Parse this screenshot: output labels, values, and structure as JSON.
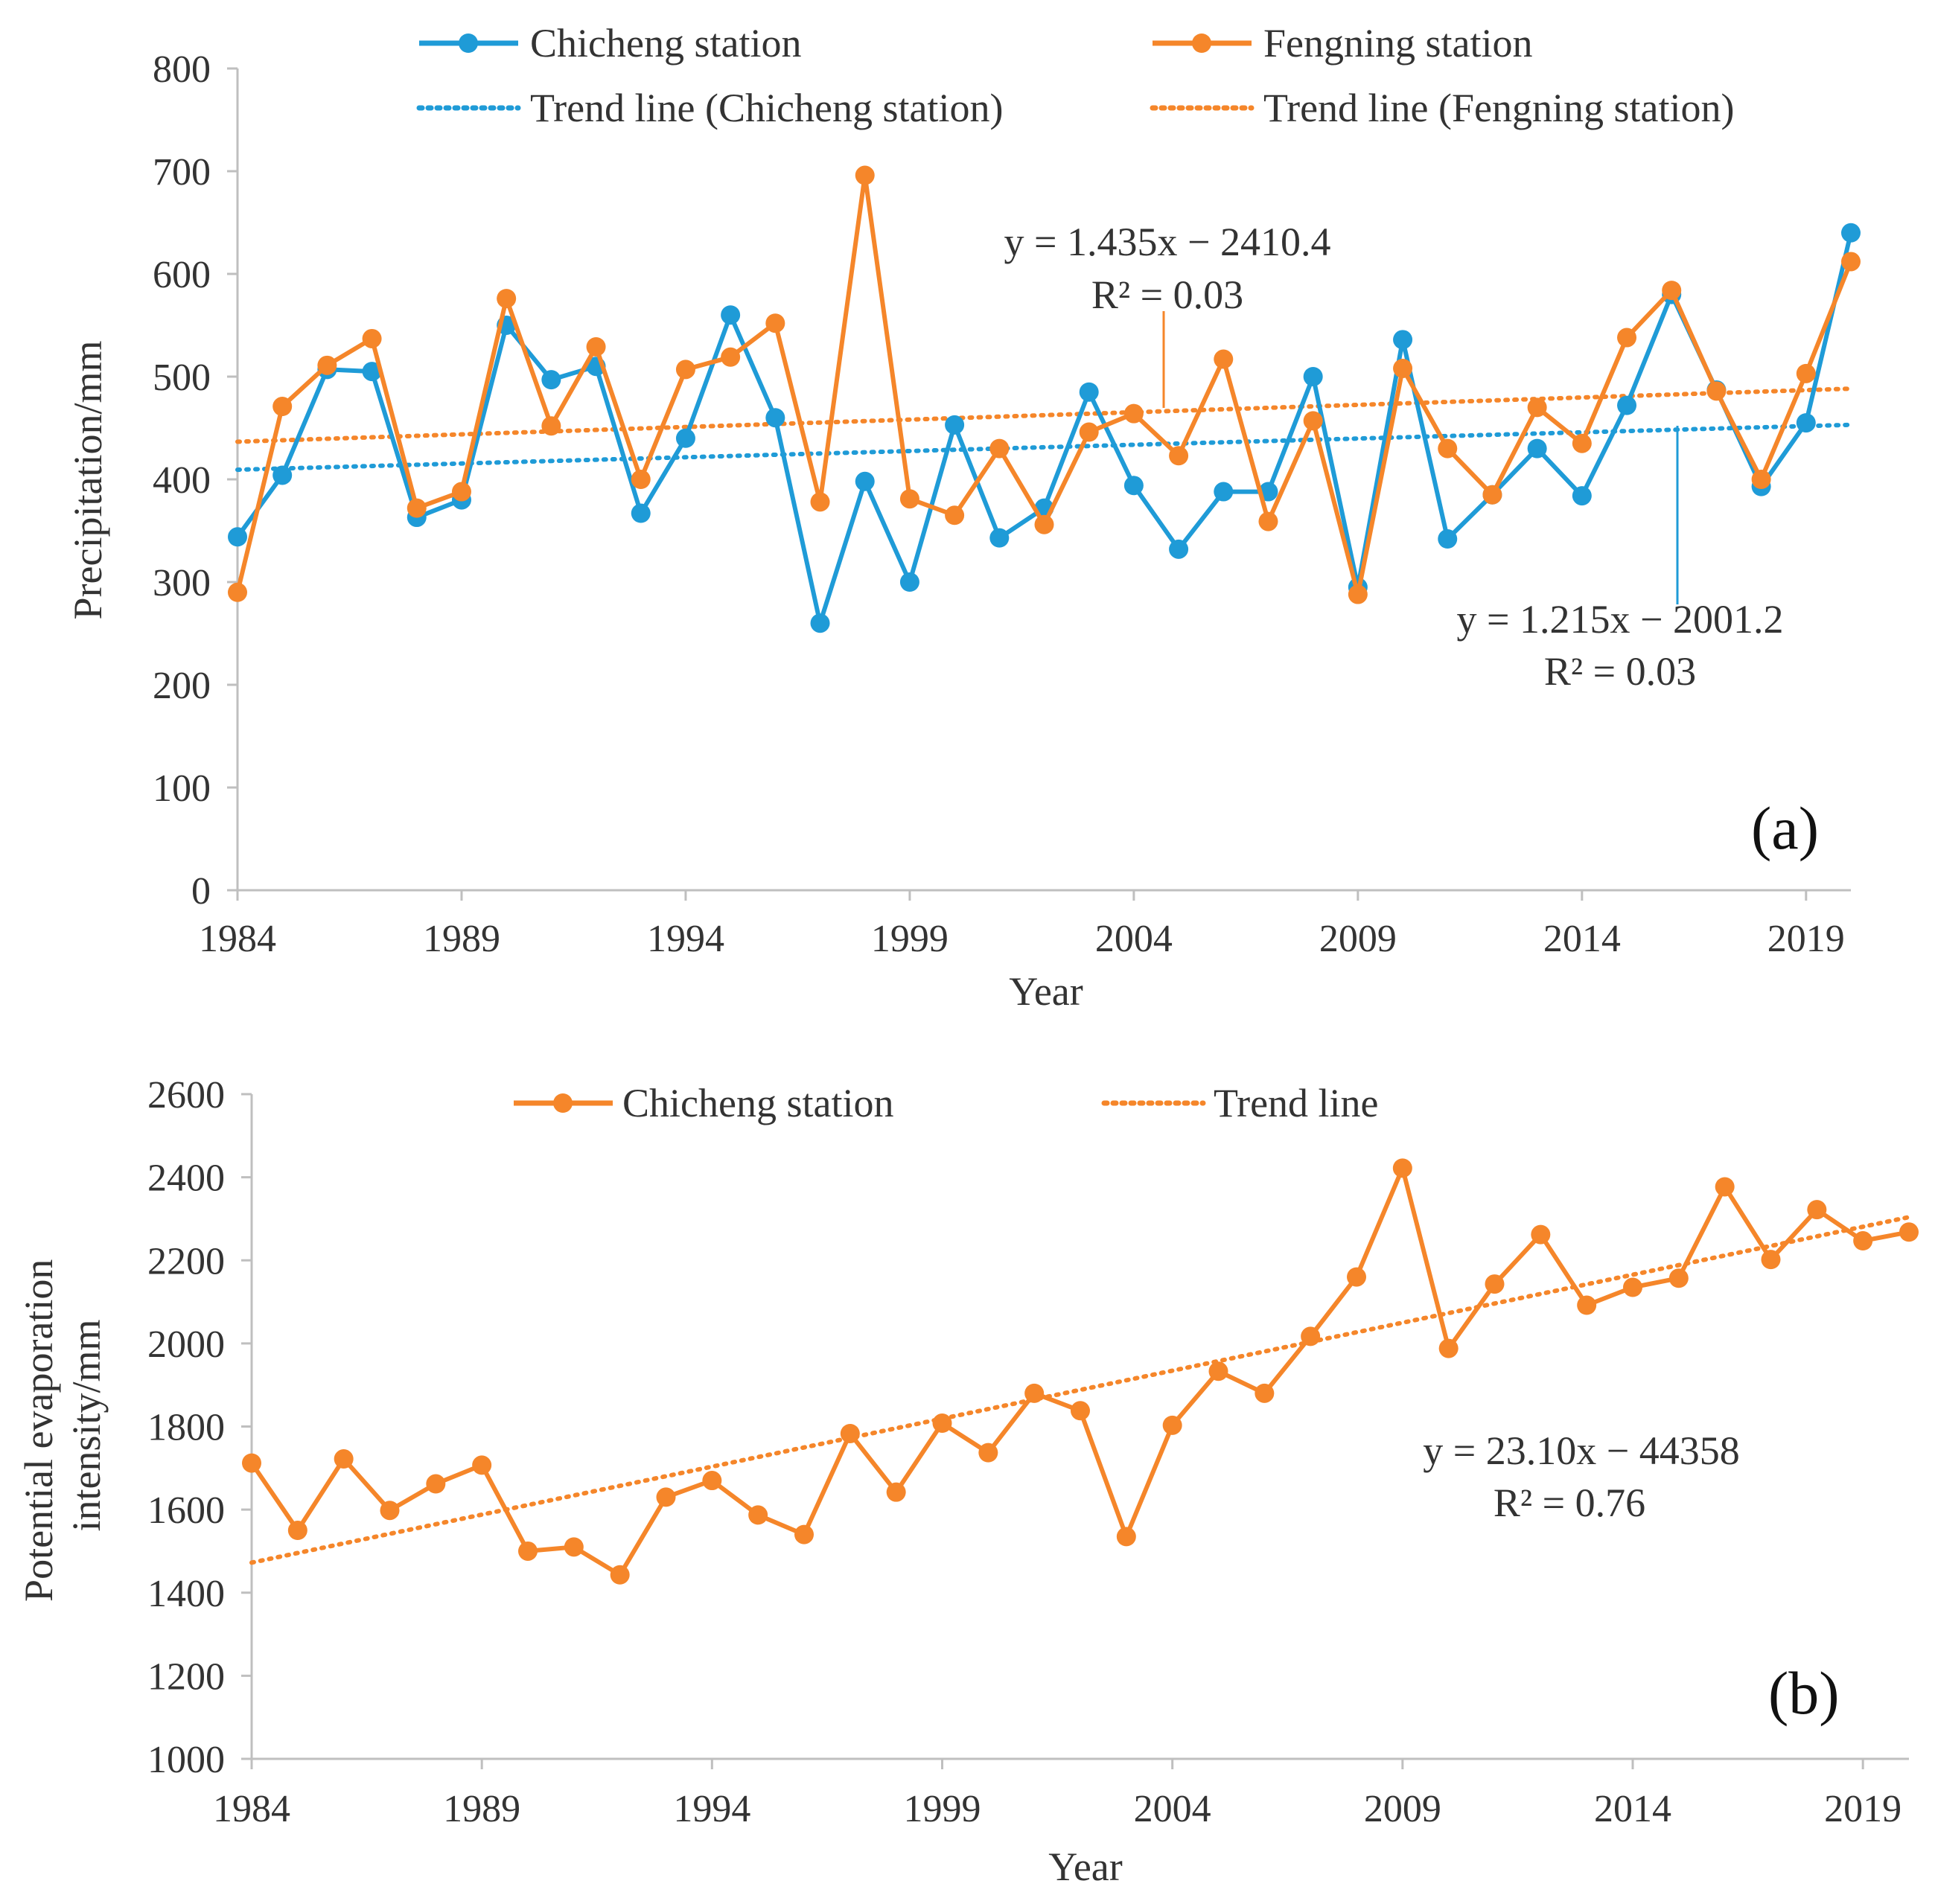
{
  "chart_data": [
    {
      "type": "line",
      "panel_label": "(a)",
      "xlabel": "Year",
      "ylabel": "Precipitation/mm",
      "ylim": [
        0,
        800
      ],
      "yticks": [
        0,
        100,
        200,
        300,
        400,
        500,
        600,
        700,
        800
      ],
      "xlim": [
        1984,
        2020
      ],
      "xticks": [
        1984,
        1989,
        1994,
        1999,
        2004,
        2009,
        2014,
        2019
      ],
      "legend_position": "top",
      "x": [
        1984,
        1985,
        1986,
        1987,
        1988,
        1989,
        1990,
        1991,
        1992,
        1993,
        1994,
        1995,
        1996,
        1997,
        1998,
        1999,
        2000,
        2001,
        2002,
        2003,
        2004,
        2005,
        2006,
        2007,
        2008,
        2009,
        2010,
        2011,
        2012,
        2013,
        2014,
        2015,
        2016,
        2017,
        2018,
        2019,
        2020
      ],
      "series": [
        {
          "name": "Chicheng station",
          "color": "#1f9bd7",
          "style": "solid-marker",
          "values": [
            344,
            404,
            507,
            505,
            363,
            380,
            550,
            497,
            510,
            367,
            440,
            560,
            460,
            260,
            398,
            300,
            453,
            343,
            372,
            485,
            394,
            332,
            388,
            388,
            500,
            295,
            536,
            342,
            385,
            430,
            384,
            472,
            580,
            487,
            393,
            455,
            640
          ]
        },
        {
          "name": "Fengning station",
          "color": "#f5862a",
          "style": "solid-marker",
          "values": [
            290,
            471,
            511,
            537,
            372,
            388,
            576,
            452,
            529,
            400,
            507,
            519,
            552,
            378,
            696,
            381,
            365,
            430,
            356,
            446,
            464,
            423,
            517,
            359,
            457,
            288,
            508,
            430,
            385,
            470,
            435,
            538,
            584,
            486,
            400,
            503,
            612
          ]
        },
        {
          "name": "Trend line (Chicheng station)",
          "color": "#1f9bd7",
          "style": "dotted",
          "trend_of": "Chicheng station",
          "slope": 1.215,
          "intercept": -2001.2
        },
        {
          "name": "Trend line (Fengning station)",
          "color": "#f5862a",
          "style": "dotted",
          "trend_of": "Fengning station",
          "slope": 1.435,
          "intercept": -2410.4
        }
      ],
      "annotations": [
        {
          "line1": "y = 1.435x − 2410.4",
          "line2": "R² = 0.03",
          "color": "#f5862a",
          "pointer_year": 2005
        },
        {
          "line1": "y = 1.215x − 2001.2",
          "line2": "R² = 0.03",
          "color": "#1f9bd7",
          "pointer_year": 2015
        }
      ]
    },
    {
      "type": "line",
      "panel_label": "(b)",
      "xlabel": "Year",
      "ylabel": "Potential evaporation intensity/mm",
      "ylim": [
        1000,
        2600
      ],
      "yticks": [
        1000,
        1200,
        1400,
        1600,
        1800,
        2000,
        2200,
        2400,
        2600
      ],
      "xlim": [
        1984,
        2020
      ],
      "xticks": [
        1984,
        1989,
        1994,
        1999,
        2004,
        2009,
        2014,
        2019
      ],
      "legend_position": "top",
      "x": [
        1984,
        1985,
        1986,
        1987,
        1988,
        1989,
        1990,
        1991,
        1992,
        1993,
        1994,
        1995,
        1996,
        1997,
        1998,
        1999,
        2000,
        2001,
        2002,
        2003,
        2004,
        2005,
        2006,
        2007,
        2008,
        2009,
        2010,
        2011,
        2012,
        2013,
        2014,
        2015,
        2016,
        2017,
        2018,
        2019,
        2020
      ],
      "series": [
        {
          "name": "Chicheng station",
          "color": "#f5862a",
          "style": "solid-marker",
          "values": [
            1712,
            1550,
            1722,
            1598,
            1662,
            1707,
            1500,
            1510,
            1443,
            1630,
            1670,
            1587,
            1540,
            1783,
            1642,
            1808,
            1737,
            1880,
            1838,
            1535,
            1803,
            1933,
            1880,
            2017,
            2160,
            2422,
            1988,
            2143,
            2262,
            2092,
            2135,
            2157,
            2377,
            2202,
            2322,
            2247,
            2268
          ]
        },
        {
          "name": "Trend line",
          "color": "#f5862a",
          "style": "dotted",
          "trend_of": "Chicheng station",
          "slope": 23.1,
          "intercept": -44358
        }
      ],
      "annotations": [
        {
          "line1": "y = 23.10x − 44358",
          "line2": "R² = 0.76",
          "color": "#333333"
        }
      ]
    }
  ]
}
